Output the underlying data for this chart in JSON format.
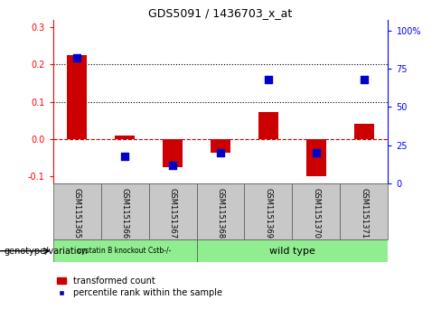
{
  "title": "GDS5091 / 1436703_x_at",
  "samples": [
    "GSM1151365",
    "GSM1151366",
    "GSM1151367",
    "GSM1151368",
    "GSM1151369",
    "GSM1151370",
    "GSM1151371"
  ],
  "transformed_count": [
    0.225,
    0.008,
    -0.075,
    -0.038,
    0.072,
    -0.1,
    0.04
  ],
  "percentile_rank": [
    82,
    18,
    12,
    20,
    68,
    20,
    68
  ],
  "bar_color": "#cc0000",
  "point_color": "#0000cc",
  "ylim_left": [
    -0.12,
    0.32
  ],
  "ylim_right": [
    0,
    107
  ],
  "yticks_left": [
    -0.1,
    0.0,
    0.1,
    0.2,
    0.3
  ],
  "yticks_right": [
    0,
    25,
    50,
    75,
    100
  ],
  "ytick_labels_right": [
    "0",
    "25",
    "50",
    "75",
    "100%"
  ],
  "hline_zero_color": "#cc0000",
  "hline_zero_style": "--",
  "hline_grid_style": ":",
  "hline_grid_color": "black",
  "group1_label": "cystatin B knockout Cstb-/-",
  "group1_samples": 3,
  "group2_label": "wild type",
  "group2_samples": 4,
  "group1_color": "#90ee90",
  "group2_color": "#90ee90",
  "genotype_label": "genotype/variation",
  "legend_bar_label": "transformed count",
  "legend_point_label": "percentile rank within the sample",
  "tick_area_bg": "#c8c8c8",
  "bar_width": 0.4,
  "point_size": 40
}
